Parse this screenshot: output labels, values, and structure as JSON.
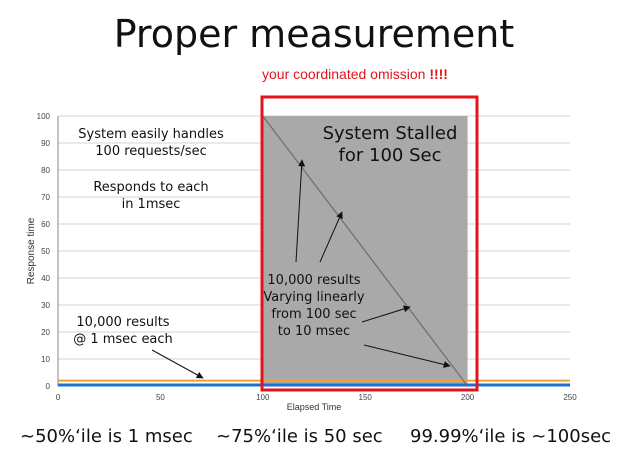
{
  "slide": {
    "title": "Proper measurement",
    "subtitle_text": "your coordinated omission ",
    "subtitle_emphasis": "!!!!"
  },
  "annotations": {
    "handles_line1": "System easily handles",
    "handles_line2": "100 requests/sec",
    "responds_line1": "Responds to each",
    "responds_line2": "in 1msec",
    "stalled_line1": "System Stalled",
    "stalled_line2": "for 100 Sec",
    "varying_line1": "10,000 results",
    "varying_line2": "Varying linearly",
    "varying_line3": "from 100 sec",
    "varying_line4": "to 10 msec",
    "results_line1": "10,000 results",
    "results_line2": "@ 1 msec each"
  },
  "bottom": {
    "p50": "~50%‘ile is 1 msec",
    "p75": "~75%‘ile is 50 sec",
    "p9999": "99.99%‘ile is ~100sec"
  },
  "colors": {
    "baseline": "#1f6fd1",
    "threshold": "#f0a030",
    "stall_fill": "#a9a9a9",
    "highlight_border": "#e3141b",
    "diagonal": "#6d6d6d",
    "grid": "#d3d3d3"
  },
  "chart_data": {
    "type": "line",
    "xlabel": "Elapsed Time",
    "ylabel": "Response time",
    "xlim": [
      0,
      250
    ],
    "ylim": [
      0,
      100
    ],
    "x_ticks": [
      0,
      50,
      100,
      150,
      200,
      250
    ],
    "y_ticks": [
      0,
      10,
      20,
      30,
      40,
      50,
      60,
      70,
      80,
      90,
      100
    ],
    "grid": true,
    "stall_region": {
      "x_start": 100,
      "x_end": 200
    },
    "series": [
      {
        "x": [
          0,
          100,
          100,
          200,
          200,
          250
        ],
        "y": [
          0,
          0,
          100,
          0,
          0,
          0
        ]
      },
      {
        "x": [
          0,
          250
        ],
        "y": [
          2,
          2
        ]
      }
    ]
  }
}
